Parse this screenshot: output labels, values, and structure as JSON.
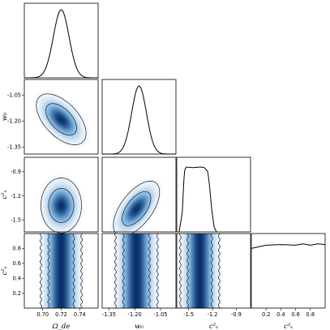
{
  "chart_data": {
    "type": "corner",
    "parameters": [
      {
        "key": "omega_de",
        "label": "Ω_de",
        "range": [
          0.68,
          0.76
        ],
        "ticks": [
          "0.70",
          "0.72",
          "0.74"
        ],
        "tick_values": [
          0.7,
          0.72,
          0.74
        ]
      },
      {
        "key": "w0",
        "label": "w₀",
        "range": [
          -1.39,
          -0.96
        ],
        "ticks": [
          "-1.35",
          "-1.20",
          "-1.05"
        ],
        "tick_values": [
          -1.35,
          -1.2,
          -1.05
        ]
      },
      {
        "key": "cs2_1",
        "label": "c²ₛ",
        "range": [
          -1.65,
          -0.72
        ],
        "ticks": [
          "-1.5",
          "-1.2",
          "-0.9"
        ],
        "tick_values": [
          -1.5,
          -1.2,
          -0.9
        ]
      },
      {
        "key": "cs2_2",
        "label": "c²ₛ",
        "range": [
          0.0,
          1.0
        ],
        "ticks": [
          "0.2",
          "0.4",
          "0.6",
          "0.8"
        ],
        "tick_values": [
          0.2,
          0.4,
          0.6,
          0.8
        ]
      }
    ],
    "marginals": [
      {
        "param": "omega_de",
        "shape": "gaussian",
        "mean": 0.72,
        "sigma": 0.0085
      },
      {
        "param": "w0",
        "shape": "gaussian",
        "mean": -1.175,
        "sigma": 0.043
      },
      {
        "param": "cs2_1",
        "shape": "plateau",
        "x": [
          -1.62,
          -1.58,
          -1.56,
          -1.55,
          -1.53,
          -1.45,
          -1.35,
          -1.3,
          -1.26,
          -1.24,
          -1.21,
          -1.18,
          -1.15
        ],
        "y": [
          0.0,
          0.3,
          0.8,
          0.95,
          1.0,
          0.99,
          1.0,
          0.99,
          0.93,
          0.75,
          0.35,
          0.08,
          0.0
        ]
      },
      {
        "param": "cs2_2",
        "shape": "flat",
        "x": [
          0.0,
          0.2,
          0.4,
          0.6,
          0.7,
          0.8,
          0.9,
          1.0
        ],
        "y": [
          0.92,
          0.97,
          0.98,
          0.97,
          0.99,
          0.97,
          0.99,
          0.98
        ]
      }
    ],
    "joints": [
      {
        "x": "omega_de",
        "y": "w0",
        "mean": [
          0.72,
          -1.19
        ],
        "sigma": [
          0.011,
          0.06
        ],
        "rho": -0.55
      },
      {
        "x": "omega_de",
        "y": "cs2_1",
        "mean": [
          0.72,
          -1.32
        ],
        "sigma": [
          0.009,
          0.14
        ],
        "rho": 0.0
      },
      {
        "x": "w0",
        "y": "cs2_1",
        "mean": [
          -1.19,
          -1.36
        ],
        "sigma": [
          0.055,
          0.14
        ],
        "rho": 0.6
      },
      {
        "x": "omega_de",
        "y": "cs2_2",
        "mean": [
          0.72,
          0.5
        ],
        "sigma": [
          0.009,
          0.0
        ],
        "rho": 0.0
      },
      {
        "x": "w0",
        "y": "cs2_2",
        "mean": [
          -1.19,
          0.5
        ],
        "sigma": [
          0.05,
          0.0
        ],
        "rho": 0.0
      },
      {
        "x": "cs2_1",
        "y": "cs2_2",
        "mean": [
          -1.36,
          0.5
        ],
        "sigma": [
          0.1,
          0.0
        ],
        "rho": 0.0
      }
    ],
    "contour_levels": [
      "68%",
      "95%"
    ],
    "colormap": {
      "low": "#ffffff",
      "mid": "#6fa8d8",
      "high": "#08306b"
    }
  }
}
